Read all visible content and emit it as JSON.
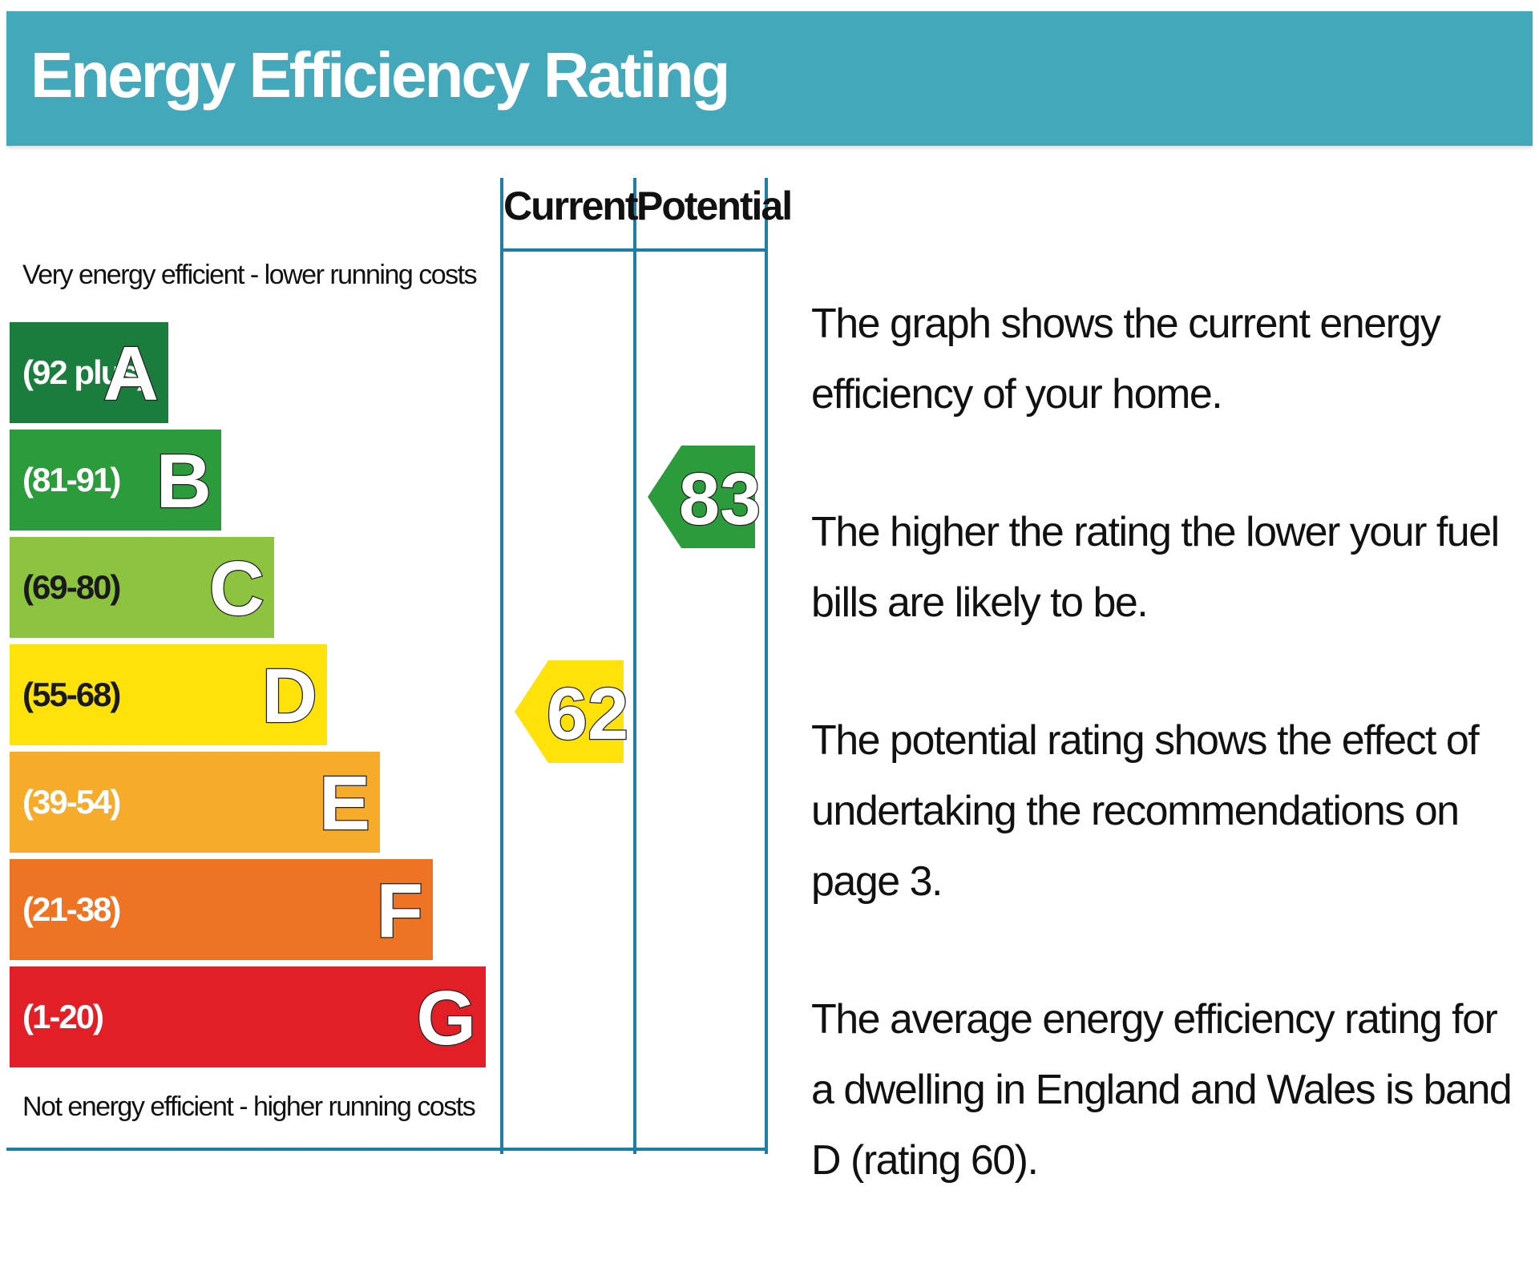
{
  "header": {
    "title": "Energy Efficiency Rating"
  },
  "table": {
    "column_current": "Current",
    "column_potential": "Potential",
    "top_note": "Very energy efficient - lower running costs",
    "bottom_note": "Not energy efficient - higher running costs"
  },
  "chart_data": {
    "type": "bar",
    "title": "Energy Efficiency Rating",
    "bands": [
      {
        "letter": "A",
        "range": "(92 plus)",
        "color": "#1a7d3e",
        "bar_value": 1
      },
      {
        "letter": "B",
        "range": "(81-91)",
        "color": "#2b9b3b",
        "bar_value": 2
      },
      {
        "letter": "C",
        "range": "(69-80)",
        "color": "#8cc43f",
        "bar_value": 3
      },
      {
        "letter": "D",
        "range": "(55-68)",
        "color": "#ffe20a",
        "bar_value": 4
      },
      {
        "letter": "E",
        "range": "(39-54)",
        "color": "#f6ab2b",
        "bar_value": 5
      },
      {
        "letter": "F",
        "range": "(21-38)",
        "color": "#ee7423",
        "bar_value": 6
      },
      {
        "letter": "G",
        "range": "(1-20)",
        "color": "#e21f26",
        "bar_value": 7
      }
    ],
    "current": {
      "value": 62,
      "band": "D",
      "color": "#ffe20a"
    },
    "potential": {
      "value": 83,
      "band": "B",
      "color": "#2b9b3b"
    }
  },
  "description": {
    "paragraphs": [
      "The graph shows the current energy efficiency of your home.",
      "The higher the rating the lower your fuel bills are likely to be.",
      "The potential rating shows the effect of undertaking the recommendations on page 3.",
      "The average energy efficiency rating for a dwelling in England and Wales is band D (rating 60)."
    ]
  }
}
